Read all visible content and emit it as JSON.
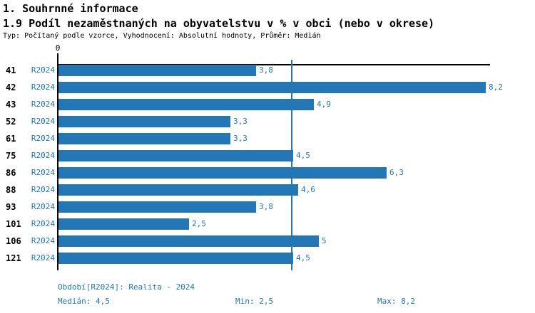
{
  "header": {
    "title": "1. Souhrnné informace",
    "subtitle": "1.9 Podíl nezaměstnaných na obyvatelstvu v % v obci (nebo v okrese)",
    "meta": "Typ: Počítaný podle vzorce, Vyhodnocení: Absolutní hodnoty, Průměr: Medián"
  },
  "colors": {
    "bar_blue": "#2277b4",
    "text_blue": "#2277b4",
    "axis_black": "#000000",
    "background": "#ffffff"
  },
  "chart_data": {
    "type": "bar",
    "orientation": "horizontal",
    "title": "1.9 Podíl nezaměstnaných na obyvatelstvu v % v obci (nebo v okrese)",
    "categories": [
      "41",
      "42",
      "43",
      "52",
      "61",
      "75",
      "86",
      "88",
      "93",
      "101",
      "106",
      "121"
    ],
    "series": [
      {
        "name": "R2024",
        "values": [
          3.8,
          8.2,
          4.9,
          3.3,
          3.3,
          4.5,
          6.3,
          4.6,
          3.8,
          2.5,
          5,
          4.5
        ],
        "value_labels": [
          "3,8",
          "8,2",
          "4,9",
          "3,3",
          "3,3",
          "4,5",
          "6,3",
          "4,6",
          "3,8",
          "2,5",
          "5",
          "4,5"
        ]
      }
    ],
    "xlim": [
      0,
      8.3
    ],
    "x_tick_labels": [
      "0"
    ],
    "grid": false,
    "legend_position": "none",
    "reference_line": {
      "value": 4.5,
      "meaning": "median"
    },
    "stats": {
      "median": 4.5,
      "min": 2.5,
      "max": 8.2
    }
  },
  "footer": {
    "period": "Období[R2024]: Realita - 2024",
    "median": "Medián: 4,5",
    "min": "Min: 2,5",
    "max": "Max: 8,2"
  }
}
